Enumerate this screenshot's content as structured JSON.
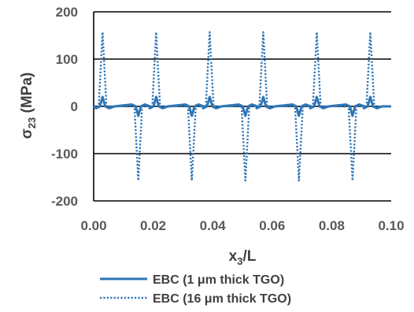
{
  "chart_data": {
    "type": "line",
    "title": "",
    "xlabel": {
      "base": "x",
      "sub": "3",
      "rest": "/L"
    },
    "ylabel": {
      "base": "σ",
      "sub": "23",
      "rest": " (MPa)"
    },
    "xlim": [
      0,
      0.1
    ],
    "ylim": [
      -200,
      200
    ],
    "x_ticks": [
      "0.00",
      "0.02",
      "0.04",
      "0.06",
      "0.08",
      "0.10"
    ],
    "x_tick_values": [
      0,
      0.02,
      0.04,
      0.06,
      0.08,
      0.1
    ],
    "y_ticks": [
      "200",
      "100",
      "0",
      "-100",
      "-200"
    ],
    "y_tick_values": [
      200,
      100,
      0,
      -100,
      -200
    ],
    "grid": "horizontal",
    "legend_position": "bottom",
    "colors": {
      "series": "#2E75B6",
      "grid": "#000000",
      "text": "#595959"
    },
    "series": [
      {
        "name": "EBC (1 μm thick TGO)",
        "style": "solid",
        "positive_peaks_x": [
          0.003,
          0.021,
          0.039,
          0.057,
          0.075,
          0.093
        ],
        "negative_peaks_x": [
          0.015,
          0.033,
          0.051,
          0.069,
          0.087
        ],
        "peak_value": 20,
        "trough_value": -20
      },
      {
        "name": "EBC (16 μm thick TGO)",
        "style": "dotted",
        "positive_peaks_x": [
          0.003,
          0.021,
          0.039,
          0.057,
          0.075,
          0.093
        ],
        "negative_peaks_x": [
          0.015,
          0.033,
          0.051,
          0.069,
          0.087
        ],
        "peak_value": 157,
        "trough_value": -157
      }
    ]
  }
}
